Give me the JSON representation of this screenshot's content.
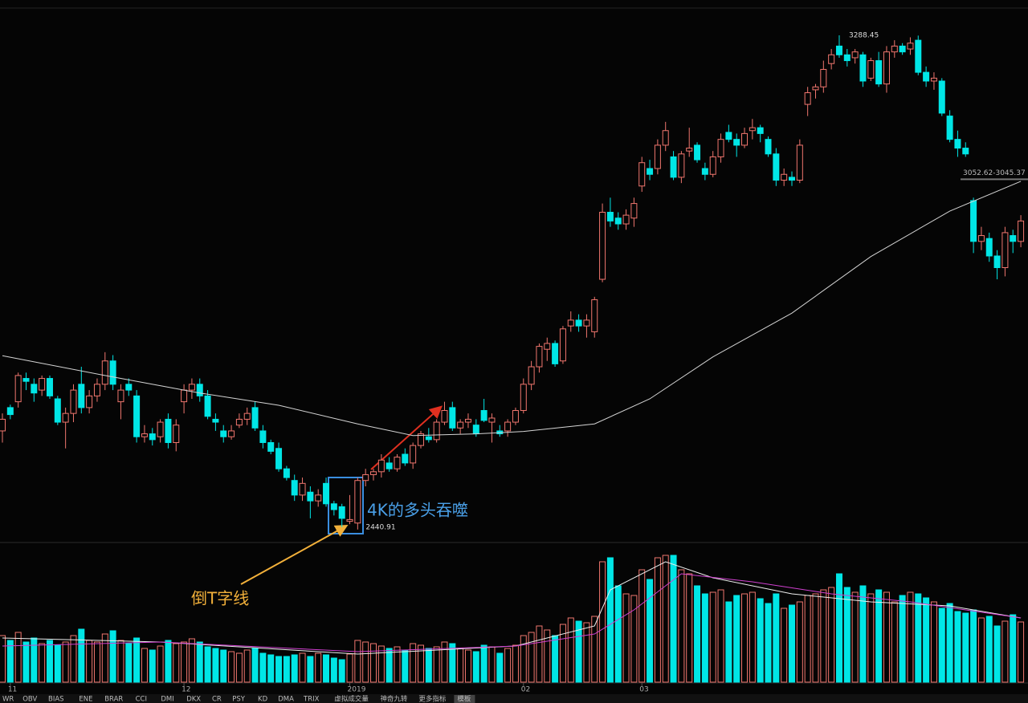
{
  "chart_data": {
    "type": "candlestick",
    "ylim": [
      2420,
      3349
    ],
    "volume_lim": [
      0,
      170
    ],
    "up_color": "#f0766e",
    "down_color": "#00e6e6",
    "xticks": [
      {
        "value": 1,
        "label": "11"
      },
      {
        "value": 23,
        "label": "12"
      },
      {
        "value": 44,
        "label": "2019"
      },
      {
        "value": 66,
        "label": "02"
      },
      {
        "value": 81,
        "label": "03"
      }
    ],
    "ohlc": [
      [
        2610,
        2640,
        2590,
        2630
      ],
      [
        2650,
        2655,
        2630,
        2638
      ],
      [
        2660,
        2710,
        2650,
        2705
      ],
      [
        2700,
        2710,
        2680,
        2695
      ],
      [
        2690,
        2700,
        2660,
        2675
      ],
      [
        2680,
        2705,
        2670,
        2700
      ],
      [
        2700,
        2705,
        2665,
        2670
      ],
      [
        2665,
        2670,
        2620,
        2625
      ],
      [
        2625,
        2650,
        2580,
        2640
      ],
      [
        2640,
        2690,
        2625,
        2680
      ],
      [
        2690,
        2720,
        2640,
        2650
      ],
      [
        2650,
        2680,
        2640,
        2670
      ],
      [
        2670,
        2700,
        2660,
        2690
      ],
      [
        2690,
        2745,
        2680,
        2730
      ],
      [
        2730,
        2740,
        2680,
        2690
      ],
      [
        2660,
        2690,
        2630,
        2680
      ],
      [
        2690,
        2700,
        2670,
        2680
      ],
      [
        2670,
        2680,
        2590,
        2600
      ],
      [
        2600,
        2620,
        2590,
        2605
      ],
      [
        2605,
        2615,
        2585,
        2595
      ],
      [
        2600,
        2630,
        2590,
        2625
      ],
      [
        2630,
        2640,
        2580,
        2590
      ],
      [
        2590,
        2630,
        2575,
        2620
      ],
      [
        2660,
        2690,
        2640,
        2680
      ],
      [
        2680,
        2700,
        2665,
        2690
      ],
      [
        2690,
        2700,
        2660,
        2670
      ],
      [
        2670,
        2680,
        2630,
        2635
      ],
      [
        2630,
        2640,
        2610,
        2625
      ],
      [
        2610,
        2620,
        2590,
        2600
      ],
      [
        2600,
        2620,
        2595,
        2610
      ],
      [
        2620,
        2640,
        2615,
        2630
      ],
      [
        2630,
        2650,
        2620,
        2640
      ],
      [
        2650,
        2660,
        2610,
        2615
      ],
      [
        2610,
        2620,
        2580,
        2590
      ],
      [
        2590,
        2595,
        2570,
        2575
      ],
      [
        2580,
        2590,
        2540,
        2545
      ],
      [
        2545,
        2550,
        2525,
        2530
      ],
      [
        2525,
        2535,
        2490,
        2500
      ],
      [
        2500,
        2530,
        2490,
        2520
      ],
      [
        2505,
        2515,
        2460,
        2490
      ],
      [
        2490,
        2510,
        2480,
        2500
      ],
      [
        2520,
        2530,
        2480,
        2485
      ],
      [
        2485,
        2490,
        2465,
        2475
      ],
      [
        2480,
        2485,
        2445,
        2460
      ],
      [
        2455,
        2500,
        2450,
        2458
      ],
      [
        2452,
        2530,
        2440.91,
        2525
      ],
      [
        2525,
        2545,
        2515,
        2535
      ],
      [
        2535,
        2545,
        2525,
        2540
      ],
      [
        2540,
        2570,
        2530,
        2560
      ],
      [
        2555,
        2565,
        2540,
        2545
      ],
      [
        2545,
        2570,
        2540,
        2565
      ],
      [
        2570,
        2580,
        2550,
        2555
      ],
      [
        2555,
        2590,
        2545,
        2585
      ],
      [
        2585,
        2610,
        2580,
        2605
      ],
      [
        2600,
        2615,
        2590,
        2595
      ],
      [
        2595,
        2630,
        2590,
        2625
      ],
      [
        2625,
        2660,
        2620,
        2645
      ],
      [
        2650,
        2660,
        2610,
        2615
      ],
      [
        2615,
        2630,
        2605,
        2625
      ],
      [
        2625,
        2640,
        2615,
        2630
      ],
      [
        2620,
        2630,
        2600,
        2605
      ],
      [
        2645,
        2665,
        2625,
        2628
      ],
      [
        2625,
        2640,
        2590,
        2632
      ],
      [
        2610,
        2620,
        2600,
        2605
      ],
      [
        2610,
        2630,
        2600,
        2625
      ],
      [
        2625,
        2650,
        2620,
        2645
      ],
      [
        2645,
        2700,
        2640,
        2690
      ],
      [
        2690,
        2730,
        2680,
        2720
      ],
      [
        2720,
        2760,
        2710,
        2755
      ],
      [
        2750,
        2770,
        2730,
        2760
      ],
      [
        2760,
        2765,
        2720,
        2725
      ],
      [
        2730,
        2790,
        2725,
        2785
      ],
      [
        2790,
        2815,
        2780,
        2800
      ],
      [
        2800,
        2810,
        2780,
        2790
      ],
      [
        2790,
        2810,
        2770,
        2800
      ],
      [
        2780,
        2840,
        2770,
        2835
      ],
      [
        2870,
        3000,
        2865,
        2985
      ],
      [
        2985,
        3010,
        2960,
        2970
      ],
      [
        2975,
        2985,
        2955,
        2965
      ],
      [
        2965,
        2990,
        2955,
        2980
      ],
      [
        2975,
        3010,
        2960,
        3000
      ],
      [
        3030,
        3080,
        3020,
        3070
      ],
      [
        3060,
        3075,
        3040,
        3050
      ],
      [
        3060,
        3110,
        3050,
        3100
      ],
      [
        3100,
        3140,
        3090,
        3125
      ],
      [
        3080,
        3090,
        3040,
        3045
      ],
      [
        3045,
        3090,
        3035,
        3085
      ],
      [
        3090,
        3130,
        3080,
        3095
      ],
      [
        3100,
        3105,
        3070,
        3075
      ],
      [
        3060,
        3070,
        3040,
        3050
      ],
      [
        3050,
        3090,
        3045,
        3080
      ],
      [
        3080,
        3120,
        3070,
        3110
      ],
      [
        3122,
        3135,
        3105,
        3110
      ],
      [
        3110,
        3120,
        3080,
        3100
      ],
      [
        3100,
        3130,
        3095,
        3120
      ],
      [
        3125,
        3145,
        3110,
        3130
      ],
      [
        3130,
        3135,
        3105,
        3120
      ],
      [
        3110,
        3115,
        3080,
        3085
      ],
      [
        3085,
        3095,
        3030,
        3040
      ],
      [
        3040,
        3060,
        3030,
        3050
      ],
      [
        3045,
        3055,
        3030,
        3040
      ],
      [
        3040,
        3110,
        3035,
        3100
      ],
      [
        3170,
        3200,
        3150,
        3190
      ],
      [
        3195,
        3205,
        3180,
        3200
      ],
      [
        3200,
        3245,
        3190,
        3230
      ],
      [
        3240,
        3265,
        3230,
        3255
      ],
      [
        3270,
        3288.45,
        3250,
        3255
      ],
      [
        3255,
        3265,
        3235,
        3245
      ],
      [
        3250,
        3265,
        3240,
        3260
      ],
      [
        3255,
        3260,
        3200,
        3210
      ],
      [
        3215,
        3250,
        3210,
        3245
      ],
      [
        3245,
        3260,
        3200,
        3205
      ],
      [
        3205,
        3270,
        3190,
        3260
      ],
      [
        3260,
        3280,
        3250,
        3270
      ],
      [
        3270,
        3275,
        3255,
        3260
      ],
      [
        3265,
        3285,
        3255,
        3275
      ],
      [
        3280,
        3288,
        3220,
        3225
      ],
      [
        3225,
        3235,
        3200,
        3210
      ],
      [
        3210,
        3225,
        3195,
        3215
      ],
      [
        3210,
        3215,
        3150,
        3155
      ],
      [
        3150,
        3160,
        3105,
        3110
      ],
      [
        3110,
        3125,
        3080,
        3095
      ],
      [
        3095,
        3105,
        3080,
        3085
      ],
      [
        3005,
        3010,
        2915,
        2935
      ],
      [
        2935,
        2960,
        2920,
        2945
      ],
      [
        2940,
        2950,
        2900,
        2910
      ],
      [
        2910,
        2920,
        2870,
        2890
      ],
      [
        2890,
        2960,
        2875,
        2950
      ],
      [
        2945,
        2955,
        2915,
        2935
      ],
      [
        2935,
        2980,
        2925,
        2970
      ]
    ],
    "volume": [
      58,
      52,
      62,
      50,
      55,
      48,
      52,
      46,
      50,
      58,
      66,
      52,
      50,
      60,
      64,
      52,
      48,
      55,
      42,
      40,
      45,
      52,
      48,
      50,
      54,
      50,
      44,
      42,
      40,
      38,
      36,
      40,
      42,
      36,
      34,
      32,
      32,
      34,
      36,
      32,
      36,
      34,
      30,
      28,
      35,
      52,
      50,
      48,
      45,
      42,
      44,
      40,
      48,
      46,
      42,
      44,
      50,
      48,
      42,
      40,
      38,
      46,
      44,
      36,
      42,
      46,
      58,
      62,
      70,
      65,
      58,
      72,
      80,
      76,
      74,
      82,
      150,
      155,
      120,
      110,
      108,
      140,
      128,
      155,
      158,
      158,
      140,
      135,
      120,
      110,
      112,
      115,
      100,
      108,
      110,
      112,
      104,
      98,
      110,
      92,
      96,
      100,
      108,
      110,
      115,
      118,
      135,
      118,
      112,
      120,
      110,
      115,
      112,
      100,
      108,
      112,
      110,
      105,
      100,
      92,
      98,
      88,
      86,
      90,
      80,
      82,
      70,
      76,
      84,
      75
    ],
    "ma": {
      "x": [
        0,
        13,
        25,
        35,
        45,
        52,
        60,
        66,
        75,
        82,
        90,
        100,
        110,
        120,
        129
      ],
      "values": [
        2739,
        2705,
        2675,
        2654,
        2622,
        2602,
        2605,
        2609,
        2622,
        2665,
        2737,
        2812,
        2909,
        2987,
        3038
      ],
      "color": "#d4d4d4"
    },
    "volume_ma": [
      {
        "x": [
          0,
          20,
          45,
          65,
          75,
          77,
          84,
          90,
          100,
          110,
          120,
          129
        ],
        "values": [
          55,
          50,
          35,
          45,
          70,
          115,
          150,
          130,
          110,
          100,
          95,
          80
        ],
        "color": "#eeeeee"
      },
      {
        "x": [
          0,
          20,
          45,
          65,
          75,
          80,
          86,
          95,
          105,
          115,
          129
        ],
        "values": [
          45,
          50,
          38,
          45,
          60,
          90,
          135,
          125,
          110,
          100,
          80
        ],
        "color": "#d040d0"
      }
    ],
    "extremes": {
      "high": 3288.45,
      "low": 2440.91
    },
    "range_line": {
      "values": [
        3052.62,
        3045.37
      ],
      "label": "3052.62-3045.37"
    },
    "annotations": [
      {
        "text": "4K的多头吞噬",
        "color": "#4aa0e8"
      },
      {
        "text": "倒T字线",
        "color": "#f2b03a"
      }
    ]
  },
  "toolbar": [
    "WR",
    "OBV",
    "BIAS",
    "ENE",
    "BRAR",
    "CCI",
    "DMI",
    "DKX",
    "CR",
    "PSY",
    "KD",
    "DMA",
    "TRIX",
    "虚拟成交量",
    "神奇九转",
    "更多指标",
    "模板"
  ]
}
